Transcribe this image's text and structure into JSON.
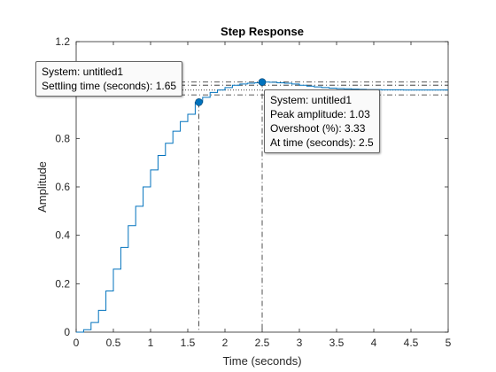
{
  "chart_data": {
    "type": "line",
    "title": "Step Response",
    "xlabel": "Time (seconds)",
    "ylabel": "Amplitude",
    "xlim": [
      0,
      5
    ],
    "ylim": [
      0,
      1.2
    ],
    "grid": false,
    "x_ticks": [
      "0",
      "0.5",
      "1",
      "1.5",
      "2",
      "2.5",
      "3",
      "3.5",
      "4",
      "4.5",
      "5"
    ],
    "y_ticks": [
      "0",
      "0.2",
      "0.4",
      "0.6",
      "0.8",
      "1",
      "1.2"
    ],
    "step_width": 0.1,
    "series": [
      {
        "values": [
          {
            "x": 0,
            "y": 0
          },
          {
            "x": 0.1,
            "y": 0.01
          },
          {
            "x": 0.2,
            "y": 0.04
          },
          {
            "x": 0.3,
            "y": 0.09
          },
          {
            "x": 0.4,
            "y": 0.17
          },
          {
            "x": 0.5,
            "y": 0.26
          },
          {
            "x": 0.6,
            "y": 0.35
          },
          {
            "x": 0.7,
            "y": 0.44
          },
          {
            "x": 0.8,
            "y": 0.52
          },
          {
            "x": 0.9,
            "y": 0.6
          },
          {
            "x": 1.0,
            "y": 0.67
          },
          {
            "x": 1.1,
            "y": 0.73
          },
          {
            "x": 1.2,
            "y": 0.78
          },
          {
            "x": 1.3,
            "y": 0.83
          },
          {
            "x": 1.4,
            "y": 0.87
          },
          {
            "x": 1.5,
            "y": 0.9
          },
          {
            "x": 1.6,
            "y": 0.95
          },
          {
            "x": 1.7,
            "y": 0.97
          },
          {
            "x": 1.8,
            "y": 0.99
          },
          {
            "x": 1.9,
            "y": 1.0
          },
          {
            "x": 2.0,
            "y": 1.01
          },
          {
            "x": 2.1,
            "y": 1.02
          },
          {
            "x": 2.2,
            "y": 1.025
          },
          {
            "x": 2.3,
            "y": 1.028
          },
          {
            "x": 2.4,
            "y": 1.03
          },
          {
            "x": 2.5,
            "y": 1.033
          },
          {
            "x": 2.6,
            "y": 1.032
          },
          {
            "x": 2.7,
            "y": 1.03
          },
          {
            "x": 2.8,
            "y": 1.028
          },
          {
            "x": 2.9,
            "y": 1.025
          },
          {
            "x": 3.0,
            "y": 1.02
          },
          {
            "x": 3.1,
            "y": 1.016
          },
          {
            "x": 3.2,
            "y": 1.013
          },
          {
            "x": 3.3,
            "y": 1.01
          },
          {
            "x": 3.4,
            "y": 1.008
          },
          {
            "x": 3.5,
            "y": 1.006
          },
          {
            "x": 3.6,
            "y": 1.005
          },
          {
            "x": 3.7,
            "y": 1.004
          },
          {
            "x": 3.8,
            "y": 1.003
          },
          {
            "x": 3.9,
            "y": 1.002
          },
          {
            "x": 4.0,
            "y": 1.002
          },
          {
            "x": 4.1,
            "y": 1.001
          },
          {
            "x": 4.2,
            "y": 1.001
          },
          {
            "x": 4.3,
            "y": 1.001
          },
          {
            "x": 4.4,
            "y": 1.0
          },
          {
            "x": 4.5,
            "y": 1.0
          },
          {
            "x": 4.6,
            "y": 1.0
          },
          {
            "x": 4.7,
            "y": 1.0
          },
          {
            "x": 4.8,
            "y": 1.0
          },
          {
            "x": 4.9,
            "y": 1.0
          },
          {
            "x": 5.0,
            "y": 1.0
          }
        ]
      }
    ],
    "reference_lines": {
      "horizontal": [
        1.033,
        1.02,
        0.98
      ],
      "final_value": 1.0,
      "vertical": [
        1.65,
        2.5
      ]
    },
    "markers": [
      {
        "name": "settling-time",
        "x": 1.65,
        "y": 0.95
      },
      {
        "name": "peak",
        "x": 2.5,
        "y": 1.033
      }
    ],
    "annotations": {
      "settling": {
        "line1": "System: untitled1",
        "line2": "Settling time (seconds): 1.65"
      },
      "peak": {
        "line1": "System: untitled1",
        "line2": "Peak amplitude: 1.03",
        "line3": "Overshoot (%): 3.33",
        "line4": "At time (seconds): 2.5"
      }
    },
    "colors": {
      "line": "#0072BD",
      "marker": "#0072BD",
      "axes": "#262626",
      "reference": "#262626"
    }
  }
}
